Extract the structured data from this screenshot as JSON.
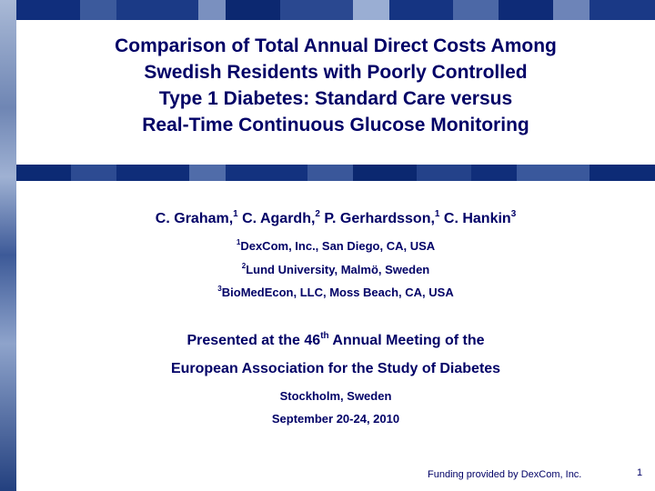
{
  "title_lines": [
    "Comparison of Total Annual Direct Costs Among",
    "Swedish Residents with Poorly Controlled",
    "Type 1 Diabetes: Standard Care versus",
    "Real-Time Continuous Glucose Monitoring"
  ],
  "authors": [
    {
      "name": "C. Graham,",
      "sup": "1"
    },
    {
      "name": "C. Agardh,",
      "sup": "2"
    },
    {
      "name": "P. Gerhardsson,",
      "sup": "1"
    },
    {
      "name": "C. Hankin",
      "sup": "3"
    }
  ],
  "affiliations": [
    {
      "sup": "1",
      "text": "DexCom, Inc., San Diego, CA, USA"
    },
    {
      "sup": "2",
      "text": "Lund University, Malmö, Sweden"
    },
    {
      "sup": "3",
      "text": "BioMedEcon, LLC, Moss Beach, CA, USA"
    }
  ],
  "presented": {
    "prefix": "Presented at the 46",
    "ordinal": "th",
    "suffix": " Annual Meeting of the",
    "line2": "European Association for the Study of Diabetes",
    "location": "Stockholm, Sweden",
    "dates": "September 20-24, 2010"
  },
  "footer": {
    "funding": "Funding provided by DexCom, Inc.",
    "slide_number": "1"
  },
  "colors": {
    "text": "#000066",
    "band_dark": "#0a2a78",
    "band_light": "#c8d4e8"
  }
}
